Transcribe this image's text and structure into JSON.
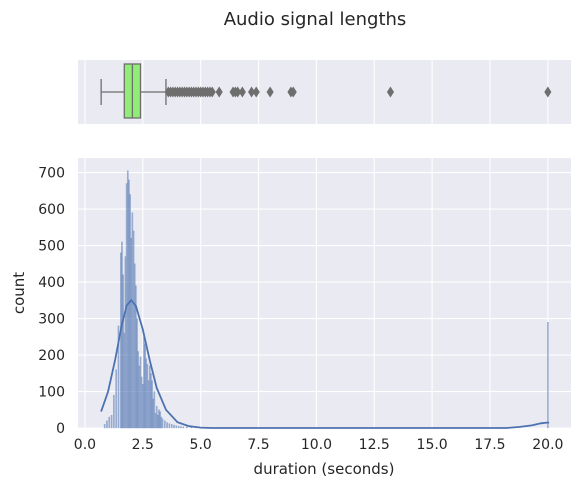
{
  "chart_data": {
    "title": "Audio signal lengths",
    "style": {
      "background": "#eaeaf2",
      "grid_color": "#ffffff",
      "hist_color": "#4c72b0",
      "kde_color": "#4c72b0",
      "box_fill": "#90ee78",
      "box_line": "#6e6e6e",
      "grid": true
    },
    "boxplot": {
      "type": "box",
      "whisker_low": 0.7,
      "q1": 1.7,
      "median": 2.05,
      "q3": 2.4,
      "whisker_high": 3.5,
      "outliers": [
        3.6,
        3.7,
        3.8,
        3.9,
        4.0,
        4.1,
        4.2,
        4.3,
        4.4,
        4.5,
        4.6,
        4.7,
        4.8,
        4.9,
        5.0,
        5.1,
        5.2,
        5.3,
        5.4,
        5.5,
        5.8,
        6.4,
        6.5,
        6.6,
        6.8,
        7.2,
        7.4,
        8.0,
        8.9,
        9.0,
        13.2,
        20.0
      ],
      "xlim": [
        -0.3,
        21.0
      ]
    },
    "histogram": {
      "type": "bar",
      "xlabel": "duration (seconds)",
      "ylabel": "count",
      "xlim": [
        -0.3,
        21.0
      ],
      "ylim": [
        0,
        740
      ],
      "xticks": [
        "0.0",
        "2.5",
        "5.0",
        "7.5",
        "10.0",
        "12.5",
        "15.0",
        "17.5",
        "20.0"
      ],
      "xtick_values": [
        0,
        2.5,
        5,
        7.5,
        10,
        12.5,
        15,
        17.5,
        20
      ],
      "yticks": [
        "0",
        "100",
        "200",
        "300",
        "400",
        "500",
        "600",
        "700"
      ],
      "ytick_values": [
        0,
        100,
        200,
        300,
        400,
        500,
        600,
        700
      ],
      "bin_width": 0.05,
      "bins": [
        [
          0.85,
          10
        ],
        [
          0.95,
          20
        ],
        [
          1.05,
          30
        ],
        [
          1.15,
          35
        ],
        [
          1.25,
          90
        ],
        [
          1.35,
          160
        ],
        [
          1.45,
          280
        ],
        [
          1.55,
          480
        ],
        [
          1.6,
          510
        ],
        [
          1.65,
          420
        ],
        [
          1.7,
          260
        ],
        [
          1.75,
          470
        ],
        [
          1.8,
          670
        ],
        [
          1.85,
          705
        ],
        [
          1.9,
          680
        ],
        [
          1.95,
          640
        ],
        [
          2.0,
          520
        ],
        [
          2.05,
          590
        ],
        [
          2.1,
          540
        ],
        [
          2.15,
          450
        ],
        [
          2.2,
          390
        ],
        [
          2.25,
          300
        ],
        [
          2.3,
          210
        ],
        [
          2.35,
          170
        ],
        [
          2.4,
          195
        ],
        [
          2.45,
          140
        ],
        [
          2.5,
          120
        ],
        [
          2.55,
          250
        ],
        [
          2.6,
          230
        ],
        [
          2.65,
          190
        ],
        [
          2.7,
          175
        ],
        [
          2.75,
          130
        ],
        [
          2.8,
          170
        ],
        [
          2.85,
          150
        ],
        [
          2.9,
          130
        ],
        [
          2.95,
          80
        ],
        [
          3.0,
          100
        ],
        [
          3.05,
          40
        ],
        [
          3.1,
          60
        ],
        [
          3.15,
          35
        ],
        [
          3.2,
          50
        ],
        [
          3.25,
          45
        ],
        [
          3.3,
          30
        ],
        [
          3.35,
          25
        ],
        [
          3.45,
          20
        ],
        [
          3.55,
          15
        ],
        [
          3.65,
          12
        ],
        [
          3.75,
          10
        ],
        [
          3.85,
          8
        ],
        [
          3.95,
          6
        ],
        [
          4.05,
          5
        ],
        [
          4.15,
          4
        ],
        [
          4.25,
          3
        ],
        [
          4.4,
          3
        ],
        [
          4.6,
          2
        ],
        [
          4.8,
          2
        ],
        [
          5.0,
          1
        ],
        [
          5.3,
          1
        ],
        [
          20.0,
          290
        ]
      ],
      "kde": [
        [
          0.7,
          45
        ],
        [
          1.0,
          100
        ],
        [
          1.3,
          185
        ],
        [
          1.6,
          285
        ],
        [
          1.8,
          335
        ],
        [
          2.0,
          350
        ],
        [
          2.2,
          335
        ],
        [
          2.5,
          270
        ],
        [
          2.8,
          185
        ],
        [
          3.1,
          110
        ],
        [
          3.5,
          50
        ],
        [
          4.0,
          16
        ],
        [
          4.5,
          5
        ],
        [
          5.0,
          1
        ],
        [
          5.5,
          0
        ],
        [
          18.2,
          0
        ],
        [
          18.8,
          3
        ],
        [
          19.3,
          7
        ],
        [
          19.7,
          13
        ],
        [
          20.0,
          15
        ],
        [
          20.05,
          14
        ]
      ]
    }
  }
}
